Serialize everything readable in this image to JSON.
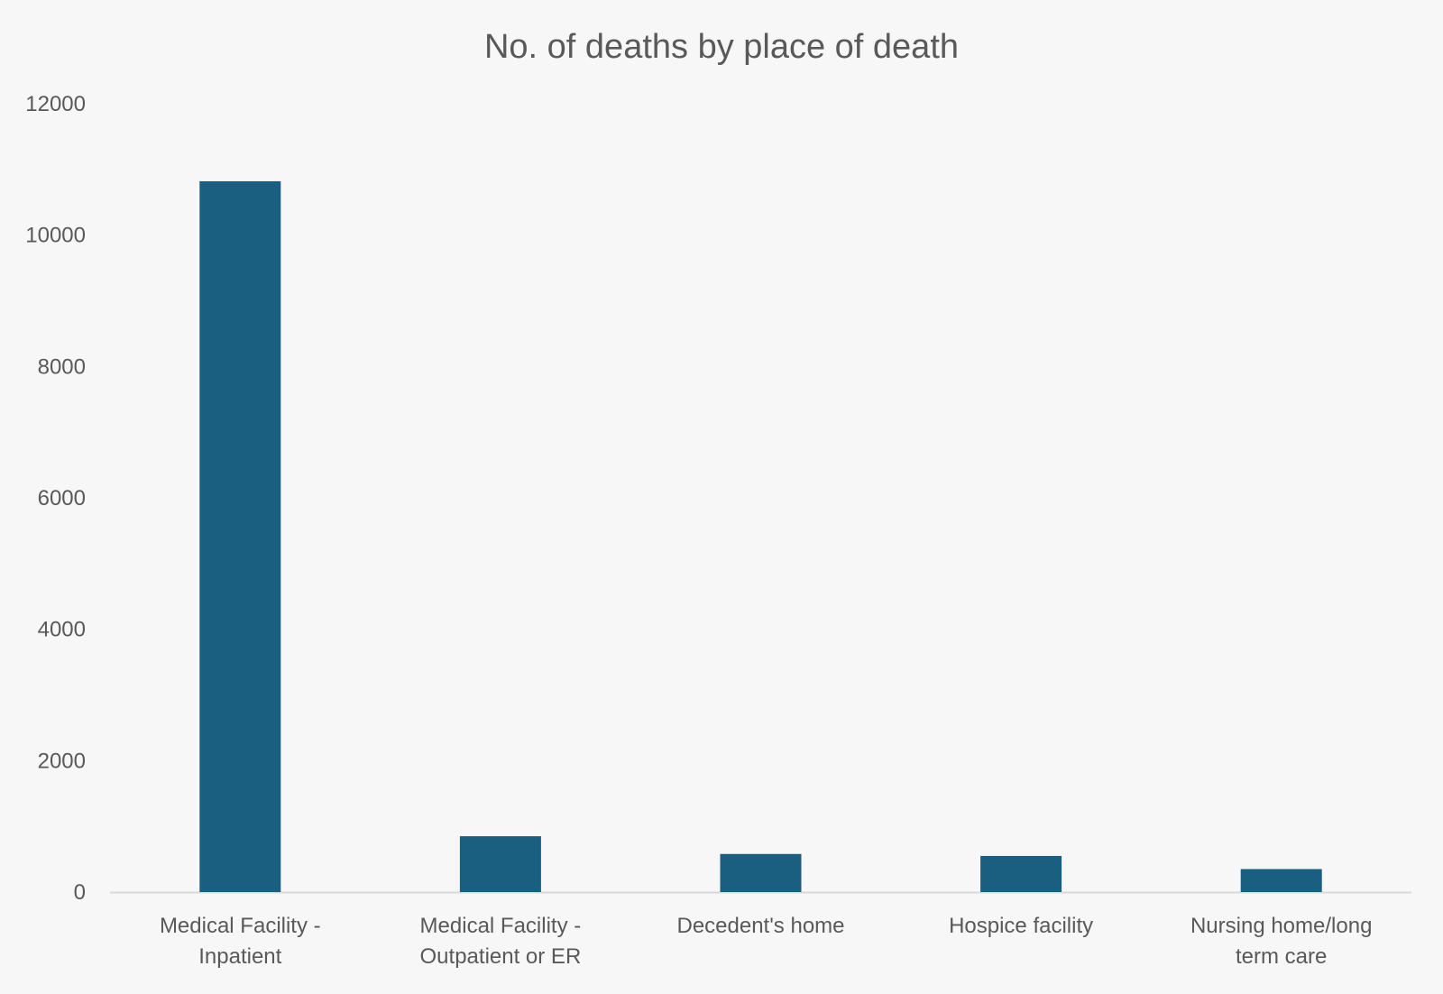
{
  "chart_data": {
    "type": "bar",
    "title": "No. of deaths by place of death",
    "xlabel": "",
    "ylabel": "",
    "categories": [
      [
        "Medical Facility -",
        "Inpatient"
      ],
      [
        "Medical Facility -",
        "Outpatient or ER"
      ],
      [
        "Decedent's home"
      ],
      [
        "Hospice facility"
      ],
      [
        "Nursing home/long",
        "term care"
      ]
    ],
    "values": [
      10820,
      850,
      580,
      550,
      350
    ],
    "ylim": [
      0,
      12000
    ],
    "yticks": [
      "0",
      "2000",
      "4000",
      "6000",
      "8000",
      "10000",
      "12000"
    ],
    "grid": false,
    "legend": "none",
    "colors": {
      "bar": "#1a5e80",
      "axis": "#d9d9d9",
      "text": "#595959",
      "background": "#f7f7f7"
    }
  }
}
